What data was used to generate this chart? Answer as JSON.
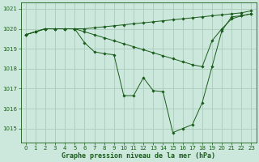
{
  "title": "Graphe pression niveau de la mer (hPa)",
  "bg_color": "#cce8dc",
  "grid_color": "#aaccbb",
  "line_color": "#1a5c1a",
  "xlim": [
    -0.5,
    23.5
  ],
  "ylim": [
    1014.3,
    1021.3
  ],
  "yticks": [
    1015,
    1016,
    1017,
    1018,
    1019,
    1020,
    1021
  ],
  "xtick_labels": [
    "0",
    "1",
    "2",
    "3",
    "4",
    "5",
    "6",
    "7",
    "8",
    "9",
    "10",
    "11",
    "12",
    "13",
    "14",
    "15",
    "16",
    "17",
    "18",
    "19",
    "20",
    "21",
    "22",
    "23"
  ],
  "series": [
    [
      1019.7,
      1019.85,
      1020.0,
      1020.0,
      1020.0,
      1020.0,
      1020.0,
      1020.05,
      1020.1,
      1020.15,
      1020.2,
      1020.25,
      1020.3,
      1020.35,
      1020.4,
      1020.45,
      1020.5,
      1020.55,
      1020.6,
      1020.65,
      1020.7,
      1020.75,
      1020.8,
      1020.9
    ],
    [
      1019.7,
      1019.85,
      1020.0,
      1020.0,
      1020.0,
      1020.0,
      1019.85,
      1019.7,
      1019.55,
      1019.4,
      1019.25,
      1019.1,
      1018.95,
      1018.8,
      1018.65,
      1018.5,
      1018.35,
      1018.2,
      1018.1,
      1019.4,
      1020.0,
      1020.5,
      1020.65,
      1020.75
    ],
    [
      1019.7,
      1019.85,
      1020.0,
      1020.0,
      1020.0,
      1020.0,
      1019.3,
      1018.85,
      1018.75,
      1018.7,
      1016.65,
      1016.65,
      1017.55,
      1016.9,
      1016.85,
      1014.8,
      1015.0,
      1015.2,
      1016.3,
      1018.1,
      1019.9,
      1020.6,
      1020.65,
      1020.75
    ]
  ]
}
